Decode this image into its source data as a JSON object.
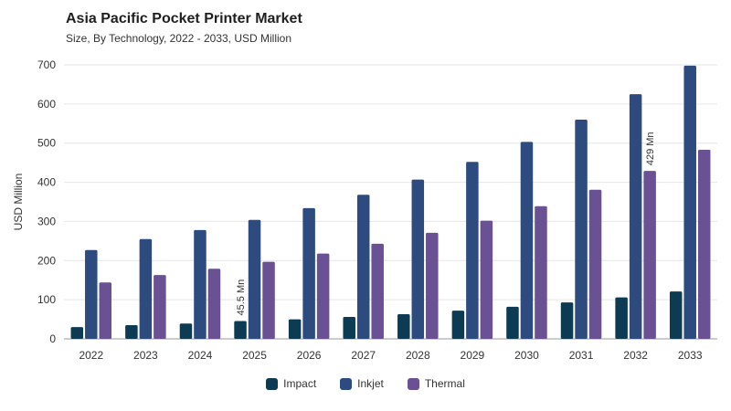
{
  "header": {
    "title": "Asia Pacific Pocket Printer Market",
    "subtitle": "Size, By Technology, 2022 - 2033, USD Million"
  },
  "chart_data": {
    "type": "bar",
    "title": "Asia Pacific Pocket Printer Market",
    "subtitle": "Size, By Technology, 2022 - 2033, USD Million",
    "xlabel": "",
    "ylabel": "USD Million",
    "ylim": [
      0,
      700
    ],
    "yticks": [
      0,
      100,
      200,
      300,
      400,
      500,
      600,
      700
    ],
    "grid": true,
    "legend_position": "bottom",
    "categories": [
      "2022",
      "2023",
      "2024",
      "2025",
      "2026",
      "2027",
      "2028",
      "2029",
      "2030",
      "2031",
      "2032",
      "2033"
    ],
    "series": [
      {
        "name": "Impact",
        "color": "#0d3b54",
        "values": [
          30,
          35,
          39,
          45.5,
          50,
          56,
          63,
          72,
          82,
          93,
          106,
          121
        ]
      },
      {
        "name": "Inkjet",
        "color": "#2d4b7e",
        "values": [
          227,
          255,
          278,
          304,
          334,
          368,
          407,
          452,
          503,
          560,
          625,
          698
        ]
      },
      {
        "name": "Thermal",
        "color": "#6a5193",
        "values": [
          144,
          163,
          179,
          197,
          218,
          243,
          271,
          302,
          339,
          381,
          429,
          483
        ]
      }
    ],
    "annotations": [
      {
        "category": "2025",
        "series": "Impact",
        "text": "45.5 Mn"
      },
      {
        "category": "2032",
        "series": "Thermal",
        "text": "429 Mn"
      }
    ]
  }
}
